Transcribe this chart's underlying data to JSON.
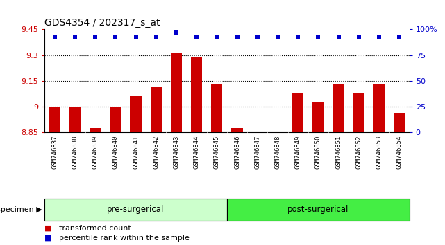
{
  "title": "GDS4354 / 202317_s_at",
  "samples": [
    "GSM746837",
    "GSM746838",
    "GSM746839",
    "GSM746840",
    "GSM746841",
    "GSM746842",
    "GSM746843",
    "GSM746844",
    "GSM746845",
    "GSM746846",
    "GSM746847",
    "GSM746848",
    "GSM746849",
    "GSM746850",
    "GSM746851",
    "GSM746852",
    "GSM746853",
    "GSM746854"
  ],
  "bar_values": [
    8.995,
    9.0,
    8.875,
    8.995,
    9.065,
    9.115,
    9.315,
    9.285,
    9.135,
    8.875,
    8.852,
    8.852,
    9.075,
    9.025,
    9.135,
    9.075,
    9.135,
    8.965
  ],
  "percentile_values": [
    93,
    93,
    93,
    93,
    93,
    93,
    97,
    93,
    93,
    93,
    93,
    93,
    93,
    93,
    93,
    93,
    93,
    93
  ],
  "bar_color": "#cc0000",
  "dot_color": "#0000cc",
  "ylim_left": [
    8.85,
    9.45
  ],
  "ylim_right": [
    0,
    100
  ],
  "yticks_left": [
    8.85,
    9.0,
    9.15,
    9.3,
    9.45
  ],
  "yticks_right": [
    0,
    25,
    50,
    75,
    100
  ],
  "ytick_labels_left": [
    "8.85",
    "9",
    "9.15",
    "9.3",
    "9.45"
  ],
  "ytick_labels_right": [
    "0",
    "25",
    "50",
    "75",
    "100%"
  ],
  "pre_label": "pre-surgerical",
  "post_label": "post-surgerical",
  "pre_count": 9,
  "post_count": 9,
  "pre_color": "#ccffcc",
  "post_color": "#44ee44",
  "specimen_label": "specimen",
  "legend_bar_label": "transformed count",
  "legend_dot_label": "percentile rank within the sample",
  "hgrid_lines": [
    9.0,
    9.15,
    9.3
  ],
  "tick_label_bg": "#cccccc"
}
